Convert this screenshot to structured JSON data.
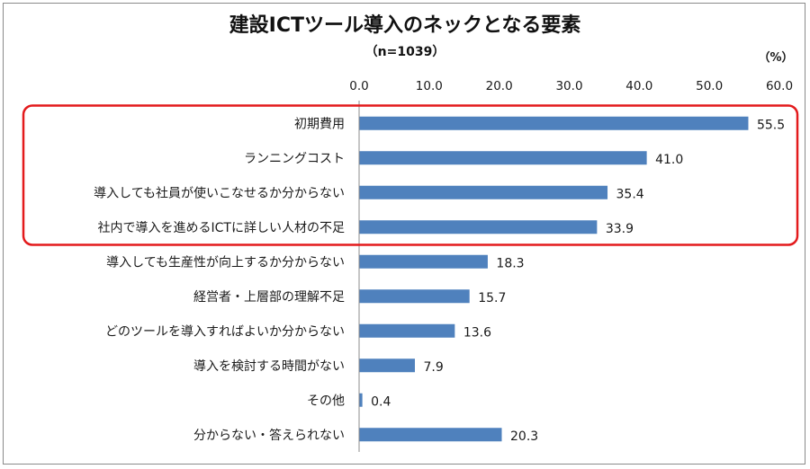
{
  "chart_data": {
    "type": "bar",
    "orientation": "horizontal",
    "title": "建設ICTツール導入のネックとなる要素",
    "subtitle": "（n=1039）",
    "unit_label": "（%）",
    "categories": [
      "初期費用",
      "ランニングコスト",
      "導入しても社員が使いこなせるか分からない",
      "社内で導入を進めるICTに詳しい人材の不足",
      "導入しても生産性が向上するか分からない",
      "経営者・上層部の理解不足",
      "どのツールを導入すればよいか分からない",
      "導入を検討する時間がない",
      "その他",
      "分からない・答えられない"
    ],
    "values": [
      55.5,
      41.0,
      35.4,
      33.9,
      18.3,
      15.7,
      13.6,
      7.9,
      0.4,
      20.3
    ],
    "value_labels": [
      "55.5",
      "41.0",
      "35.4",
      "33.9",
      "18.3",
      "15.7",
      "13.6",
      "7.9",
      "0.4",
      "20.3"
    ],
    "xlim": [
      0,
      60
    ],
    "xticks": [
      "0.0",
      "10.0",
      "20.0",
      "30.0",
      "40.0",
      "50.0",
      "60.0"
    ],
    "grid": false,
    "axis_position": "top",
    "bar_color": "#4f81bd",
    "highlight": {
      "from_index": 0,
      "to_index": 3,
      "color": "#e31a1c"
    }
  }
}
